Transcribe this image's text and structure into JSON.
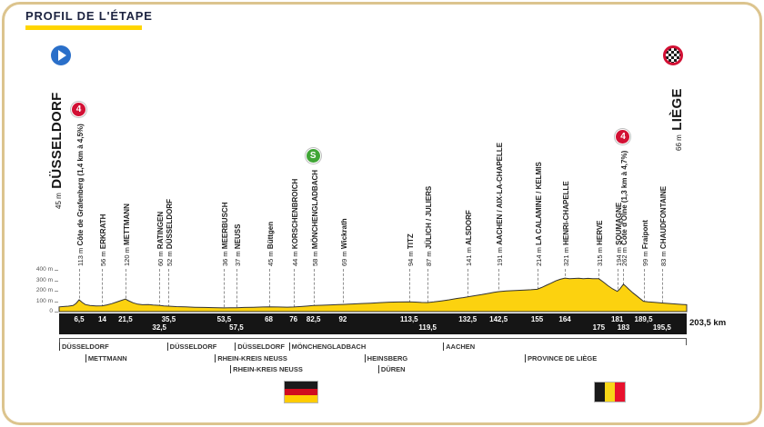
{
  "header": {
    "title": "PROFIL DE L'ÉTAPE"
  },
  "start": {
    "name": "DÜSSELDORF",
    "elevation": "45 m"
  },
  "finish": {
    "name": "LIÈGE",
    "elevation": "66 m"
  },
  "total_distance": "203,5 km",
  "badges": {
    "cat4": "4",
    "sprint": "S"
  },
  "icons": {
    "start": "play-circle-icon",
    "finish": "checkered-flag-icon",
    "germany": "germany-flag-icon",
    "belgium": "belgium-flag-icon"
  },
  "colors": {
    "profile_fill": "#FCD20F",
    "profile_stroke": "#333333",
    "accent_yellow": "#FFD500",
    "cat4_red": "#D21034",
    "sprint_green": "#3FA535",
    "start_blue": "#2A6FC9",
    "border_gold": "#DCC48E"
  },
  "axis": {
    "ticks": [
      {
        "label": "400 m",
        "m": 400
      },
      {
        "label": "300 m",
        "m": 300
      },
      {
        "label": "200 m",
        "m": 200
      },
      {
        "label": "100 m",
        "m": 100
      },
      {
        "label": "0",
        "m": 0
      }
    ]
  },
  "waypoints": [
    {
      "km": 6.5,
      "km_label": "6,5",
      "row": "top",
      "ele": "113 m",
      "name": "Côte de Grafenberg (1,4 km à 4,5%)",
      "badge": "cat4"
    },
    {
      "km": 14,
      "km_label": "14",
      "row": "top",
      "ele": "56 m",
      "name": "ERKRATH",
      "badge": null
    },
    {
      "km": 21.5,
      "km_label": "21,5",
      "row": "top",
      "ele": "120 m",
      "name": "METTMANN",
      "badge": null
    },
    {
      "km": 32.5,
      "km_label": "32,5",
      "row": "bottom",
      "ele": "60 m",
      "name": "RATINGEN",
      "badge": null
    },
    {
      "km": 35.5,
      "km_label": "35,5",
      "row": "top",
      "ele": "52 m",
      "name": "DÜSSELDORF",
      "badge": null
    },
    {
      "km": 53.5,
      "km_label": "53,5",
      "row": "top",
      "ele": "36 m",
      "name": "MEERBUSCH",
      "badge": null
    },
    {
      "km": 57.5,
      "km_label": "57,5",
      "row": "bottom",
      "ele": "37 m",
      "name": "NEUSS",
      "badge": null
    },
    {
      "km": 68,
      "km_label": "68",
      "row": "top",
      "ele": "45 m",
      "name": "Büttgen",
      "badge": null
    },
    {
      "km": 76,
      "km_label": "76",
      "row": "top",
      "ele": "44 m",
      "name": "KORSCHENBROICH",
      "badge": null
    },
    {
      "km": 82.5,
      "km_label": "82,5",
      "row": "top",
      "ele": "58 m",
      "name": "MÖNCHENGLADBACH",
      "badge": "sprint"
    },
    {
      "km": 92,
      "km_label": "92",
      "row": "top",
      "ele": "69 m",
      "name": "Wickrath",
      "badge": null
    },
    {
      "km": 113.5,
      "km_label": "113,5",
      "row": "top",
      "ele": "94 m",
      "name": "TITZ",
      "badge": null
    },
    {
      "km": 119.5,
      "km_label": "119,5",
      "row": "bottom",
      "ele": "87 m",
      "name": "JÜLICH / JULIERS",
      "badge": null
    },
    {
      "km": 132.5,
      "km_label": "132,5",
      "row": "top",
      "ele": "141 m",
      "name": "ALSDORF",
      "badge": null
    },
    {
      "km": 142.5,
      "km_label": "142,5",
      "row": "top",
      "ele": "191 m",
      "name": "AACHEN / AIX-LA-CHAPELLE",
      "badge": null
    },
    {
      "km": 155,
      "km_label": "155",
      "row": "top",
      "ele": "214 m",
      "name": "LA CALAMINE / KELMIS",
      "badge": null
    },
    {
      "km": 164,
      "km_label": "164",
      "row": "top",
      "ele": "321 m",
      "name": "HENRI-CHAPELLE",
      "badge": null
    },
    {
      "km": 175,
      "km_label": "175",
      "row": "bottom",
      "ele": "315 m",
      "name": "HERVE",
      "badge": null
    },
    {
      "km": 181,
      "km_label": "181",
      "row": "top",
      "ele": "194 m",
      "name": "SOUMAGNE",
      "badge": null
    },
    {
      "km": 183,
      "km_label": "183",
      "row": "bottom",
      "ele": "262 m",
      "name": "Côte d'Olne (1,3 km à 4,7%)",
      "badge": "cat4"
    },
    {
      "km": 189.5,
      "km_label": "189,5",
      "row": "top",
      "ele": "99 m",
      "name": "Fraipont",
      "badge": null
    },
    {
      "km": 195.5,
      "km_label": "195,5",
      "row": "bottom",
      "ele": "83 m",
      "name": "CHAUDFONTAINE",
      "badge": null
    }
  ],
  "regions": [
    {
      "row": 1,
      "km": 0,
      "label": "DÜSSELDORF"
    },
    {
      "row": 1,
      "km": 35,
      "label": "DÜSSELDORF"
    },
    {
      "row": 1,
      "km": 57,
      "label": "DÜSSELDORF"
    },
    {
      "row": 1,
      "km": 74.5,
      "label": "MÖNCHENGLADBACH"
    },
    {
      "row": 1,
      "km": 124.5,
      "label": "AACHEN"
    },
    {
      "row": 2,
      "km": 8.5,
      "label": "METTMANN"
    },
    {
      "row": 2,
      "km": 50.5,
      "label": "RHEIN-KREIS NEUSS"
    },
    {
      "row": 2,
      "km": 99,
      "label": "HEINSBERG"
    },
    {
      "row": 2,
      "km": 151,
      "label": "PROVINCE DE LIÈGE"
    },
    {
      "row": 3,
      "km": 55.5,
      "label": "RHEIN-KREIS NEUSS"
    },
    {
      "row": 3,
      "km": 103.5,
      "label": "DÜREN"
    }
  ],
  "chart_data": {
    "type": "area",
    "title": "PROFIL DE L'ÉTAPE",
    "xlabel": "km",
    "ylabel": "m",
    "xlim": [
      0,
      203.5
    ],
    "ylim": [
      0,
      400
    ],
    "y_ticks_m": [
      0,
      100,
      200,
      300,
      400
    ],
    "grid": false,
    "profile": [
      [
        0,
        45
      ],
      [
        1.5,
        49
      ],
      [
        3,
        52
      ],
      [
        4.5,
        58
      ],
      [
        5.5,
        78
      ],
      [
        6.5,
        113
      ],
      [
        7.5,
        88
      ],
      [
        8.5,
        68
      ],
      [
        10,
        59
      ],
      [
        12,
        55
      ],
      [
        14,
        56
      ],
      [
        15.5,
        64
      ],
      [
        17,
        76
      ],
      [
        18.5,
        90
      ],
      [
        20,
        105
      ],
      [
        21.5,
        120
      ],
      [
        22.5,
        104
      ],
      [
        24,
        84
      ],
      [
        25.5,
        71
      ],
      [
        27,
        66
      ],
      [
        29,
        68
      ],
      [
        30.5,
        63
      ],
      [
        32.5,
        60
      ],
      [
        34,
        55
      ],
      [
        35.5,
        52
      ],
      [
        38,
        48
      ],
      [
        41,
        45
      ],
      [
        44,
        42
      ],
      [
        47,
        40
      ],
      [
        50,
        38
      ],
      [
        53.5,
        36
      ],
      [
        55.5,
        37
      ],
      [
        57.5,
        37
      ],
      [
        60,
        40
      ],
      [
        63,
        42
      ],
      [
        66,
        44
      ],
      [
        68,
        45
      ],
      [
        71,
        44
      ],
      [
        74,
        43
      ],
      [
        76,
        44
      ],
      [
        78.5,
        49
      ],
      [
        80.5,
        53
      ],
      [
        82.5,
        58
      ],
      [
        85,
        61
      ],
      [
        88,
        64
      ],
      [
        90.5,
        67
      ],
      [
        92,
        69
      ],
      [
        95,
        73
      ],
      [
        98,
        77
      ],
      [
        101,
        81
      ],
      [
        104,
        86
      ],
      [
        107,
        90
      ],
      [
        110,
        92
      ],
      [
        113.5,
        94
      ],
      [
        115.5,
        91
      ],
      [
        117.5,
        88
      ],
      [
        119.5,
        87
      ],
      [
        121.5,
        93
      ],
      [
        124,
        103
      ],
      [
        126.5,
        113
      ],
      [
        129,
        126
      ],
      [
        131,
        134
      ],
      [
        132.5,
        141
      ],
      [
        134.5,
        151
      ],
      [
        137,
        163
      ],
      [
        139.5,
        176
      ],
      [
        141,
        184
      ],
      [
        142.5,
        191
      ],
      [
        145,
        197
      ],
      [
        148,
        202
      ],
      [
        151,
        207
      ],
      [
        153,
        210
      ],
      [
        155,
        214
      ],
      [
        156.5,
        231
      ],
      [
        158,
        252
      ],
      [
        159.5,
        272
      ],
      [
        161,
        294
      ],
      [
        162.5,
        310
      ],
      [
        164,
        321
      ],
      [
        165.5,
        316
      ],
      [
        167,
        317
      ],
      [
        168.5,
        319
      ],
      [
        170,
        316
      ],
      [
        171.5,
        318
      ],
      [
        173,
        315
      ],
      [
        175,
        315
      ],
      [
        176.5,
        283
      ],
      [
        178,
        248
      ],
      [
        179.5,
        217
      ],
      [
        181,
        194
      ],
      [
        181.7,
        213
      ],
      [
        182.4,
        240
      ],
      [
        183,
        262
      ],
      [
        183.8,
        242
      ],
      [
        184.6,
        218
      ],
      [
        186,
        181
      ],
      [
        187.5,
        146
      ],
      [
        189.5,
        99
      ],
      [
        191,
        93
      ],
      [
        193,
        89
      ],
      [
        195.5,
        83
      ],
      [
        197.5,
        78
      ],
      [
        200,
        73
      ],
      [
        202,
        69
      ],
      [
        203.5,
        66
      ]
    ]
  }
}
